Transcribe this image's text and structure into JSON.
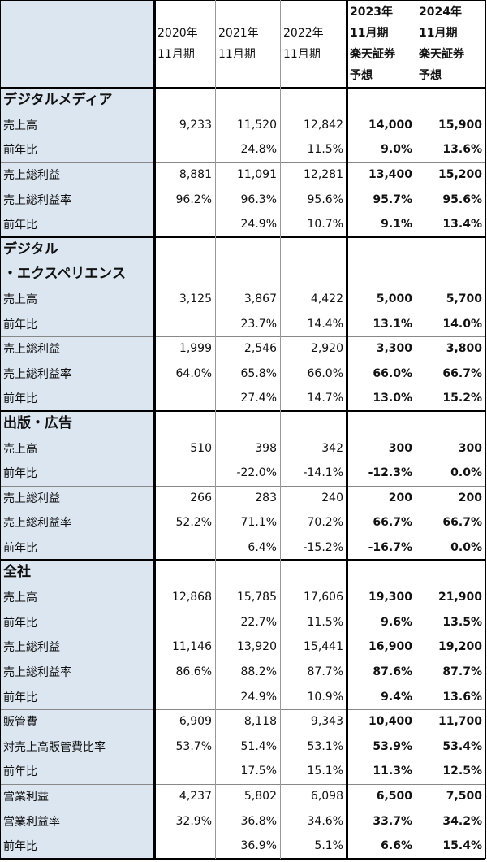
{
  "header": [
    "2020年\n11月期",
    "2021年\n11月期",
    "2022年\n11月期",
    "2023年\n11月期\n楽天証券\n予想",
    "2024年\n11月期\n楽天証券\n予想"
  ],
  "sections": [
    {
      "title": "デジタルメディア",
      "groups": [
        [
          {
            "label": "売上高",
            "cells": [
              "9,233",
              "11,520",
              "12,842",
              "14,000",
              "15,900"
            ]
          },
          {
            "label": "前年比",
            "cells": [
              null,
              "24.8%",
              "11.5%",
              "9.0%",
              "13.6%"
            ]
          }
        ],
        [
          {
            "label": "売上総利益",
            "cells": [
              "8,881",
              "11,091",
              "12,281",
              "13,400",
              "15,200"
            ]
          },
          {
            "label": "売上総利益率",
            "cells": [
              "96.2%",
              "96.3%",
              "95.6%",
              "95.7%",
              "95.6%"
            ]
          },
          {
            "label": "前年比",
            "cells": [
              null,
              "24.9%",
              "10.7%",
              "9.1%",
              "13.4%"
            ]
          }
        ]
      ]
    },
    {
      "title": "デジタル\n・エクスペリエンス",
      "groups": [
        [
          {
            "label": "売上高",
            "cells": [
              "3,125",
              "3,867",
              "4,422",
              "5,000",
              "5,700"
            ]
          },
          {
            "label": "前年比",
            "cells": [
              null,
              "23.7%",
              "14.4%",
              "13.1%",
              "14.0%"
            ]
          }
        ],
        [
          {
            "label": "売上総利益",
            "cells": [
              "1,999",
              "2,546",
              "2,920",
              "3,300",
              "3,800"
            ]
          },
          {
            "label": "売上総利益率",
            "cells": [
              "64.0%",
              "65.8%",
              "66.0%",
              "66.0%",
              "66.7%"
            ]
          },
          {
            "label": "前年比",
            "cells": [
              null,
              "27.4%",
              "14.7%",
              "13.0%",
              "15.2%"
            ]
          }
        ]
      ]
    },
    {
      "title": "出版・広告",
      "groups": [
        [
          {
            "label": "売上高",
            "cells": [
              "510",
              "398",
              "342",
              "300",
              "300"
            ]
          },
          {
            "label": "前年比",
            "cells": [
              null,
              "-22.0%",
              "-14.1%",
              "-12.3%",
              "0.0%"
            ]
          }
        ],
        [
          {
            "label": "売上総利益",
            "cells": [
              "266",
              "283",
              "240",
              "200",
              "200"
            ]
          },
          {
            "label": "売上総利益率",
            "cells": [
              "52.2%",
              "71.1%",
              "70.2%",
              "66.7%",
              "66.7%"
            ]
          },
          {
            "label": "前年比",
            "cells": [
              null,
              "6.4%",
              "-15.2%",
              "-16.7%",
              "0.0%"
            ]
          }
        ]
      ]
    },
    {
      "title": "全社",
      "groups": [
        [
          {
            "label": "売上高",
            "cells": [
              "12,868",
              "15,785",
              "17,606",
              "19,300",
              "21,900"
            ]
          },
          {
            "label": "前年比",
            "cells": [
              null,
              "22.7%",
              "11.5%",
              "9.6%",
              "13.5%"
            ]
          }
        ],
        [
          {
            "label": "売上総利益",
            "cells": [
              "11,146",
              "13,920",
              "15,441",
              "16,900",
              "19,200"
            ]
          },
          {
            "label": "売上総利益率",
            "cells": [
              "86.6%",
              "88.2%",
              "87.7%",
              "87.6%",
              "87.7%"
            ]
          },
          {
            "label": "前年比",
            "cells": [
              null,
              "24.9%",
              "10.9%",
              "9.4%",
              "13.6%"
            ]
          }
        ],
        [
          {
            "label": "販管費",
            "cells": [
              "6,909",
              "8,118",
              "9,343",
              "10,400",
              "11,700"
            ]
          },
          {
            "label": "対売上高販管費比率",
            "cells": [
              "53.7%",
              "51.4%",
              "53.1%",
              "53.9%",
              "53.4%"
            ]
          },
          {
            "label": "前年比",
            "cells": [
              null,
              "17.5%",
              "15.1%",
              "11.3%",
              "12.5%"
            ]
          }
        ],
        [
          {
            "label": "営業利益",
            "cells": [
              "4,237",
              "5,802",
              "6,098",
              "6,500",
              "7,500"
            ]
          },
          {
            "label": "営業利益率",
            "cells": [
              "32.9%",
              "36.8%",
              "34.6%",
              "33.7%",
              "34.2%"
            ]
          },
          {
            "label": "前年比",
            "cells": [
              null,
              "36.9%",
              "5.1%",
              "6.6%",
              "15.4%"
            ]
          }
        ]
      ]
    }
  ]
}
